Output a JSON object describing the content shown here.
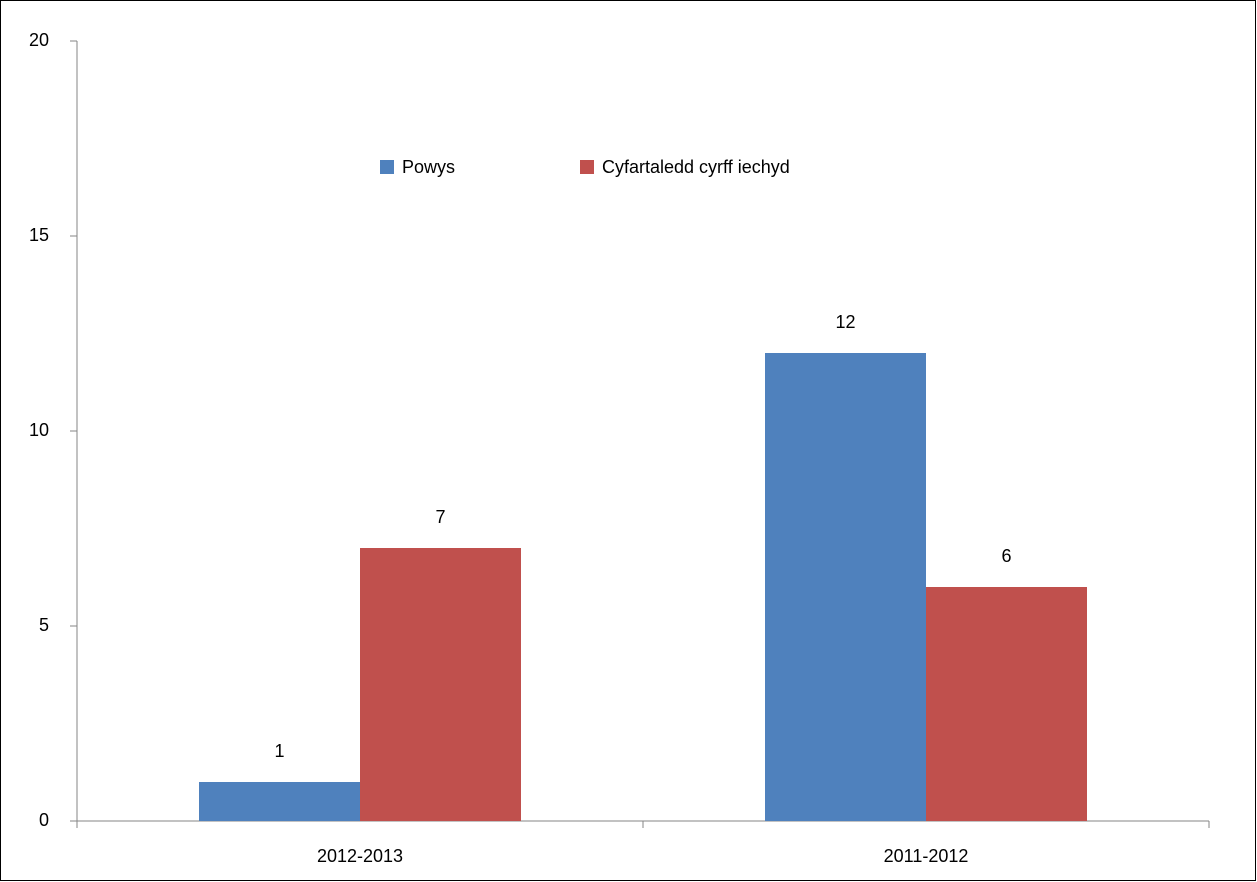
{
  "chart_data": {
    "type": "bar",
    "categories": [
      "2012-2013",
      "2011-2012"
    ],
    "series": [
      {
        "name": "Powys",
        "color": "#4f81bd",
        "values": [
          1,
          12
        ]
      },
      {
        "name": "Cyfartaledd cyrff iechyd",
        "color": "#c0504d",
        "values": [
          7,
          6
        ]
      }
    ],
    "ylim": [
      0,
      20
    ],
    "yticks": [
      0,
      5,
      10,
      15,
      20
    ],
    "grid": false,
    "legend": "top"
  }
}
